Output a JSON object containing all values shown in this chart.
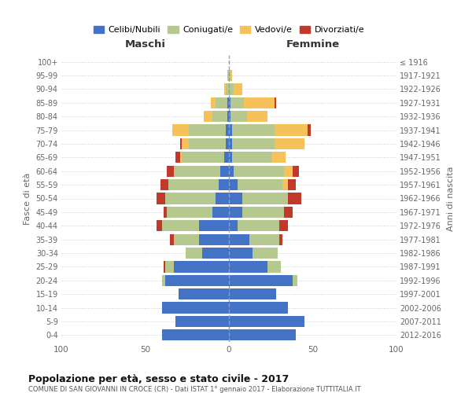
{
  "age_groups": [
    "100+",
    "95-99",
    "90-94",
    "85-89",
    "80-84",
    "75-79",
    "70-74",
    "65-69",
    "60-64",
    "55-59",
    "50-54",
    "45-49",
    "40-44",
    "35-39",
    "30-34",
    "25-29",
    "20-24",
    "15-19",
    "10-14",
    "5-9",
    "0-4"
  ],
  "birth_years": [
    "≤ 1916",
    "1917-1921",
    "1922-1926",
    "1927-1931",
    "1932-1936",
    "1937-1941",
    "1942-1946",
    "1947-1951",
    "1952-1956",
    "1957-1961",
    "1962-1966",
    "1967-1971",
    "1972-1976",
    "1977-1981",
    "1982-1986",
    "1987-1991",
    "1992-1996",
    "1997-2001",
    "2002-2006",
    "2007-2011",
    "2012-2016"
  ],
  "maschi": {
    "celibi": [
      0,
      0,
      0,
      1,
      1,
      2,
      2,
      3,
      5,
      6,
      8,
      10,
      18,
      18,
      16,
      33,
      38,
      30,
      40,
      32,
      40
    ],
    "coniugati": [
      0,
      1,
      2,
      7,
      9,
      22,
      22,
      25,
      28,
      30,
      30,
      27,
      22,
      15,
      10,
      5,
      2,
      0,
      0,
      0,
      0
    ],
    "vedovi": [
      0,
      0,
      1,
      3,
      5,
      10,
      4,
      1,
      0,
      0,
      0,
      0,
      0,
      0,
      0,
      0,
      0,
      0,
      0,
      0,
      0
    ],
    "divorziati": [
      0,
      0,
      0,
      0,
      0,
      0,
      1,
      3,
      4,
      5,
      5,
      2,
      3,
      2,
      0,
      1,
      0,
      0,
      0,
      0,
      0
    ]
  },
  "femmine": {
    "nubili": [
      0,
      0,
      0,
      1,
      1,
      2,
      2,
      2,
      3,
      5,
      8,
      8,
      5,
      12,
      14,
      23,
      38,
      28,
      35,
      45,
      40
    ],
    "coniugate": [
      0,
      1,
      3,
      8,
      10,
      25,
      25,
      24,
      30,
      27,
      27,
      25,
      25,
      18,
      15,
      8,
      3,
      0,
      0,
      0,
      0
    ],
    "vedove": [
      0,
      1,
      5,
      18,
      12,
      20,
      18,
      8,
      5,
      3,
      0,
      0,
      0,
      0,
      0,
      0,
      0,
      0,
      0,
      0,
      0
    ],
    "divorziate": [
      0,
      0,
      0,
      1,
      0,
      2,
      0,
      0,
      4,
      5,
      8,
      5,
      5,
      2,
      0,
      0,
      0,
      0,
      0,
      0,
      0
    ]
  },
  "colors": {
    "celibi": "#4472c4",
    "coniugati": "#b5c98e",
    "vedovi": "#f5c158",
    "divorziati": "#c0392b"
  },
  "title": "Popolazione per età, sesso e stato civile - 2017",
  "subtitle": "COMUNE DI SAN GIOVANNI IN CROCE (CR) - Dati ISTAT 1° gennaio 2017 - Elaborazione TUTTITALIA.IT",
  "label_maschi": "Maschi",
  "label_femmine": "Femmine",
  "ylabel_left": "Fasce di età",
  "ylabel_right": "Anni di nascita",
  "xlim": 100,
  "legend_labels": [
    "Celibi/Nubili",
    "Coniugati/e",
    "Vedovi/e",
    "Divorziati/e"
  ],
  "bg_color": "#ffffff",
  "grid_color": "#cccccc"
}
